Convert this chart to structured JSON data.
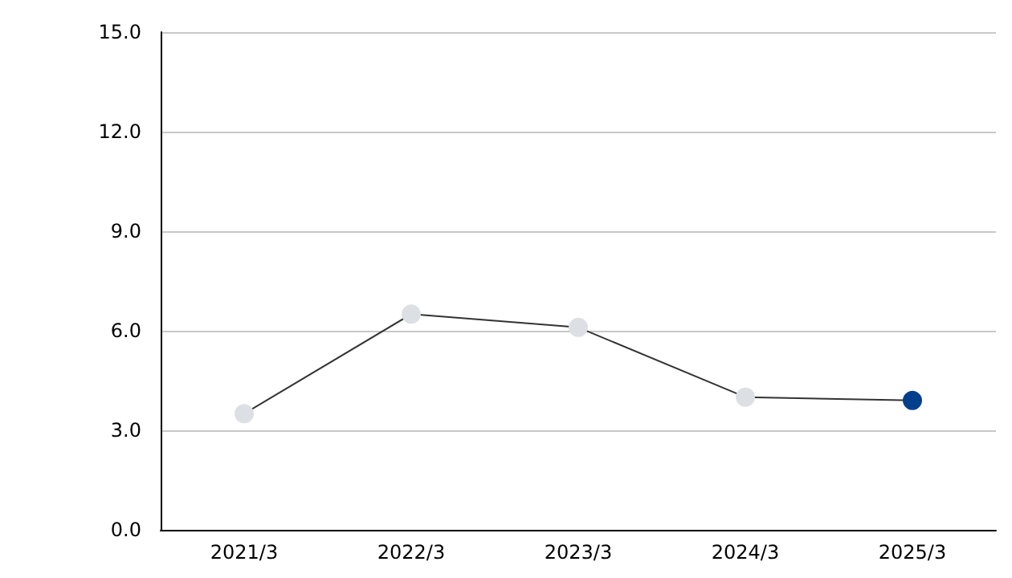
{
  "chart_data": {
    "type": "line",
    "categories": [
      "2021/3",
      "2022/3",
      "2023/3",
      "2024/3",
      "2025/3"
    ],
    "series": [
      {
        "color": "#333333",
        "colors": [
          "#dcdfe3",
          "#dcdfe3",
          "#dcdfe3",
          "#dcdfe3",
          "#003f8c"
        ],
        "values": [
          3.5,
          6.5,
          6.1,
          4.0,
          3.9
        ]
      }
    ],
    "ylim": [
      0,
      15
    ],
    "yticks": [
      {
        "value": 0,
        "label": "0.0"
      },
      {
        "value": 3,
        "label": "3.0"
      },
      {
        "value": 6,
        "label": "6.0"
      },
      {
        "value": 9,
        "label": "9.0"
      },
      {
        "value": 12,
        "label": "12.0"
      },
      {
        "value": 15,
        "label": "15.0"
      }
    ],
    "grid": "y",
    "marker": "circle",
    "line_style": "solid"
  }
}
